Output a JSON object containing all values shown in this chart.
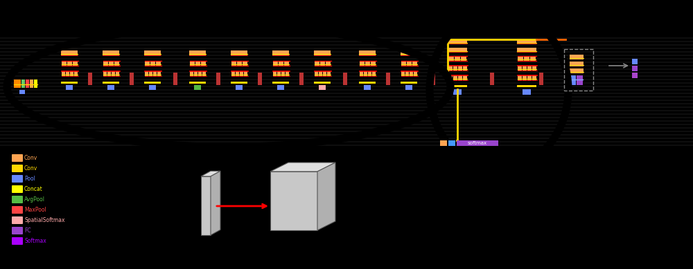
{
  "bg": "#000000",
  "orange": "#FFA552",
  "yellow": "#FFD700",
  "red": "#FF0000",
  "blue": "#6688FF",
  "green": "#55BB44",
  "dark_red": "#BB3333",
  "pink": "#FFAAAA",
  "purple": "#9944CC",
  "gray": "#AAAAAA",
  "legend": [
    [
      "#FFA552",
      "Conv"
    ],
    [
      "#FFD700",
      "Conv"
    ],
    [
      "#6688FF",
      "Pool"
    ],
    [
      "#FFFF00",
      "Concat"
    ],
    [
      "#55BB44",
      "AvgPool"
    ],
    [
      "#FF4444",
      "MaxPool"
    ],
    [
      "#FFAAAA",
      "SpatialSoftmax"
    ],
    [
      "#9944CC",
      "FC"
    ],
    [
      "#AA00FF",
      "Softmax"
    ]
  ],
  "horiz_lines": [
    55,
    60,
    65,
    70,
    75,
    80,
    85,
    90,
    95,
    100,
    105,
    110,
    115,
    120,
    125,
    130,
    135,
    140,
    145,
    150,
    155,
    160,
    165,
    170,
    175,
    180,
    185,
    190,
    195,
    200,
    205,
    210
  ]
}
